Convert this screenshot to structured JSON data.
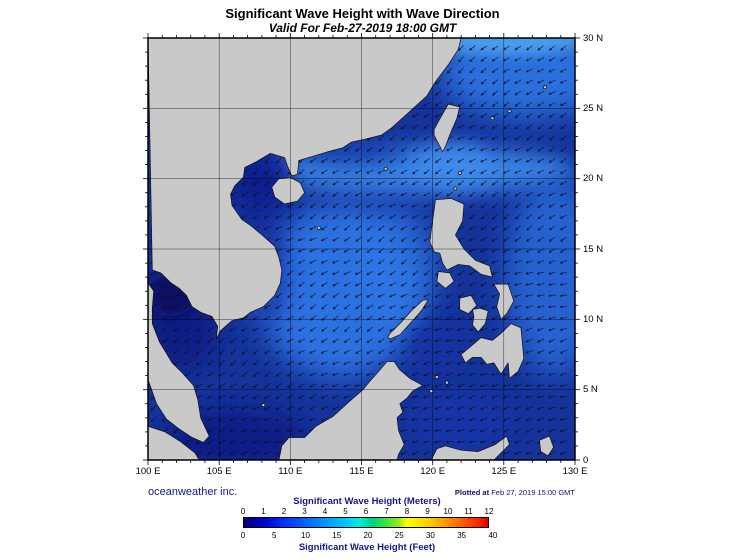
{
  "title": "Significant Wave Height with Wave Direction",
  "subtitle": "Valid For Feb-27-2019 18:00 GMT",
  "credit": "oceanweather inc.",
  "plotted": {
    "label": "Plotted at",
    "value": "Feb 27, 2019 15:00 GMT"
  },
  "axes": {
    "lat_ticks": [
      {
        "lat": 30,
        "label": "30 N"
      },
      {
        "lat": 25,
        "label": "25 N"
      },
      {
        "lat": 20,
        "label": "20 N"
      },
      {
        "lat": 15,
        "label": "15 N"
      },
      {
        "lat": 10,
        "label": "10 N"
      },
      {
        "lat": 5,
        "label": "5 N"
      },
      {
        "lat": 0,
        "label": "0"
      }
    ],
    "lon_ticks": [
      {
        "lon": 100,
        "label": "100 E"
      },
      {
        "lon": 105,
        "label": "105 E"
      },
      {
        "lon": 110,
        "label": "110 E"
      },
      {
        "lon": 115,
        "label": "115 E"
      },
      {
        "lon": 120,
        "label": "120 E"
      },
      {
        "lon": 125,
        "label": "125 E"
      },
      {
        "lon": 130,
        "label": "130 E"
      }
    ]
  },
  "legend": {
    "meters_title": "Significant Wave Height (Meters)",
    "feet_title": "Significant Wave Height (Feet)",
    "meters_ticks": [
      0,
      1,
      2,
      3,
      4,
      5,
      6,
      7,
      8,
      9,
      10,
      11,
      12
    ],
    "feet_ticks": [
      0,
      5,
      10,
      15,
      20,
      25,
      30,
      35,
      40
    ],
    "gradient": [
      {
        "m": 0,
        "color": "#000082"
      },
      {
        "m": 1,
        "color": "#0000c8"
      },
      {
        "m": 2,
        "color": "#0034ff"
      },
      {
        "m": 3,
        "color": "#0064ff"
      },
      {
        "m": 4,
        "color": "#0096ff"
      },
      {
        "m": 5,
        "color": "#00c8ff"
      },
      {
        "m": 5.7,
        "color": "#00eeda"
      },
      {
        "m": 6.3,
        "color": "#00d284"
      },
      {
        "m": 7,
        "color": "#3ce83c"
      },
      {
        "m": 7.6,
        "color": "#96e622"
      },
      {
        "m": 8,
        "color": "#ffff00"
      },
      {
        "m": 9,
        "color": "#ffd200"
      },
      {
        "m": 10,
        "color": "#ff9000"
      },
      {
        "m": 10.8,
        "color": "#ff5a00"
      },
      {
        "m": 11.5,
        "color": "#ff2800"
      },
      {
        "m": 12,
        "color": "#dc0000"
      }
    ]
  },
  "colors": {
    "land": "#c9c9c9",
    "ocean_base": "#15339b",
    "coastline": "#111111",
    "navy_text": "#15158a"
  },
  "chart_data": {
    "type": "heatmap",
    "title": "Significant Wave Height with Wave Direction",
    "valid_time": "Feb-27-2019 18:00 GMT",
    "plotted_time": "Feb 27, 2019 15:00 GMT",
    "x_range_deg_east": [
      100,
      130
    ],
    "y_range_deg_north": [
      0,
      30
    ],
    "x_tick_labels": [
      "100 E",
      "105 E",
      "110 E",
      "115 E",
      "120 E",
      "125 E",
      "130 E"
    ],
    "y_tick_labels": [
      "0",
      "5 N",
      "10 N",
      "15 N",
      "20 N",
      "25 N",
      "30 N"
    ],
    "colorbar_meters": [
      0,
      1,
      2,
      3,
      4,
      5,
      6,
      7,
      8,
      9,
      10,
      11,
      12
    ],
    "colorbar_feet": [
      0,
      5,
      10,
      15,
      20,
      25,
      30,
      35,
      40
    ],
    "units": [
      "Meters",
      "Feet"
    ]
  }
}
